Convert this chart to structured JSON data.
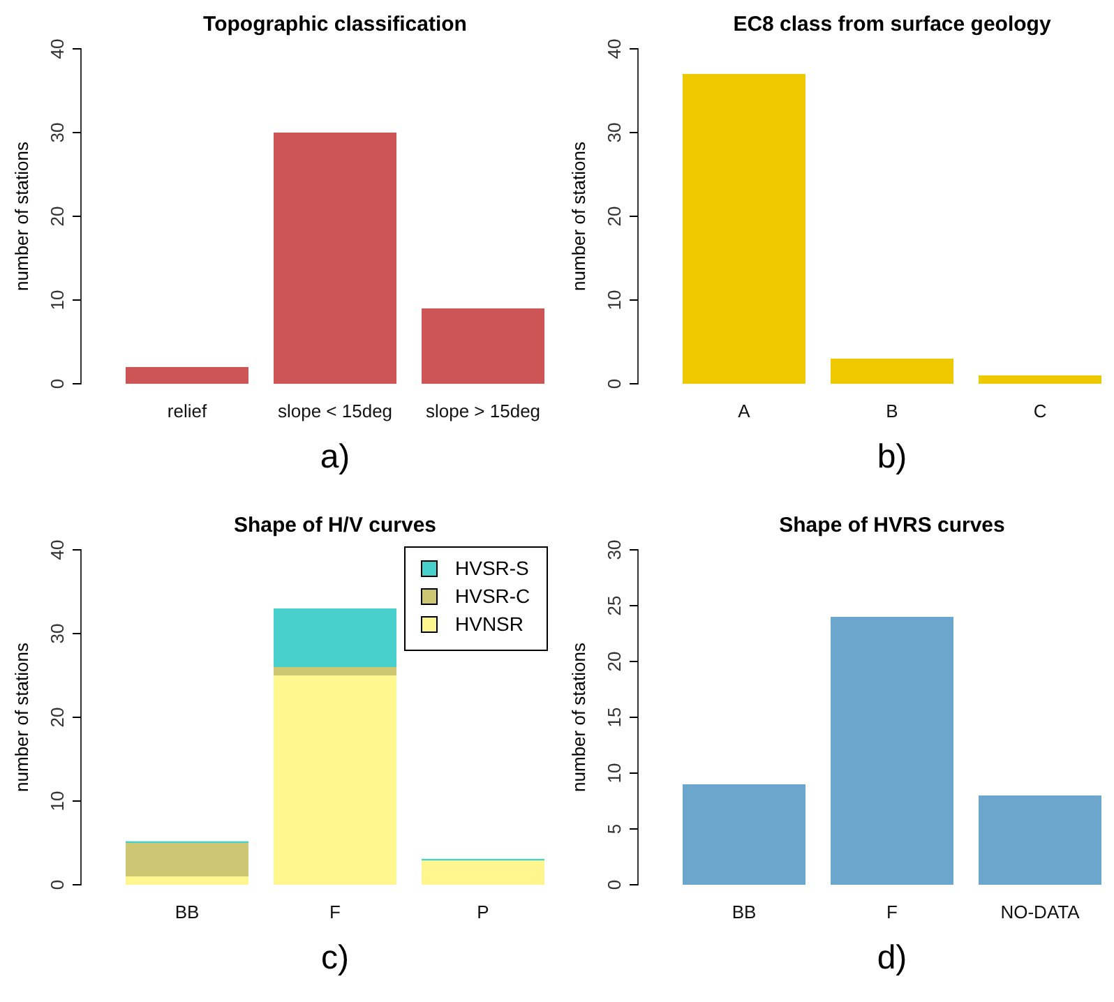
{
  "chart_data": [
    {
      "type": "bar",
      "title": "Topographic classification",
      "ylabel": "number of stations",
      "categories": [
        "relief",
        "slope < 15deg",
        "slope > 15deg"
      ],
      "values": [
        2,
        30,
        9
      ],
      "color": "#cd5555",
      "ylim": [
        0,
        40
      ],
      "yticks": [
        0,
        10,
        20,
        30,
        40
      ],
      "annotations": [
        "a)"
      ]
    },
    {
      "type": "bar",
      "title": "EC8 class from surface geology",
      "ylabel": "number of stations",
      "categories": [
        "A",
        "B",
        "C"
      ],
      "values": [
        37,
        3,
        1
      ],
      "color": "#eec900",
      "ylim": [
        0,
        40
      ],
      "yticks": [
        0,
        10,
        20,
        30,
        40
      ],
      "annotations": [
        "b)"
      ]
    },
    {
      "type": "bar",
      "title": "Shape of H/V curves",
      "ylabel": "number of stations",
      "categories": [
        "BB",
        "F",
        "P"
      ],
      "stacked": true,
      "legend": "top right",
      "series": [
        {
          "name": "HVNSR",
          "color": "#fff68f",
          "values": [
            1,
            25,
            2.9
          ]
        },
        {
          "name": "HVSR-C",
          "color": "#cdc673",
          "values": [
            4,
            1,
            0
          ]
        },
        {
          "name": "HVSR-S",
          "color": "#48d1cc",
          "values": [
            0.2,
            7,
            0.2
          ]
        }
      ],
      "ylim": [
        0,
        40
      ],
      "yticks": [
        0,
        10,
        20,
        30,
        40
      ],
      "annotations": [
        "c)"
      ]
    },
    {
      "type": "bar",
      "title": "Shape of HVRS curves",
      "ylabel": "number of stations",
      "categories": [
        "BB",
        "F",
        "NO-DATA"
      ],
      "values": [
        9,
        24,
        8
      ],
      "color": "#6ca6cd",
      "ylim": [
        0,
        30
      ],
      "yticks": [
        0,
        5,
        10,
        15,
        20,
        25,
        30
      ],
      "annotations": [
        "d)"
      ]
    }
  ]
}
